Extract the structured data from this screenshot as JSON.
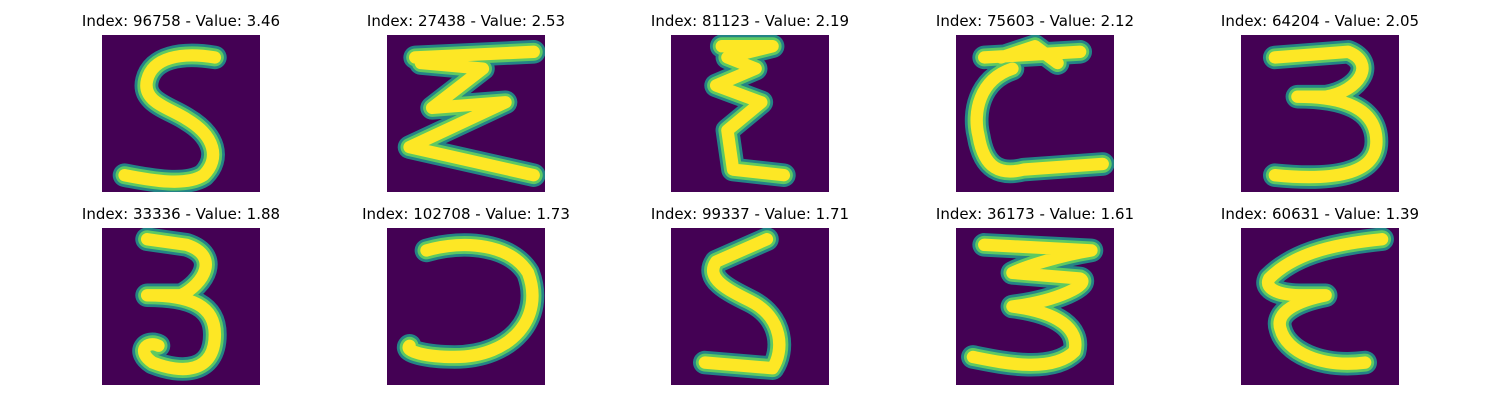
{
  "colors": {
    "background": "#440154",
    "mid_dark": "#21918c",
    "mid_light": "#5ec962",
    "foreground": "#fde725"
  },
  "panels": [
    {
      "title": "Index: 96758 - Value: 3.46",
      "glyph": "5"
    },
    {
      "title": "Index: 27438 - Value: 2.53",
      "glyph": "Σ"
    },
    {
      "title": "Index: 81123 - Value: 2.19",
      "glyph": "ξ"
    },
    {
      "title": "Index: 75603 - Value: 2.12",
      "glyph": "C"
    },
    {
      "title": "Index: 64204 - Value: 2.05",
      "glyph": "3"
    },
    {
      "title": "Index: 33336 - Value: 1.88",
      "glyph": "3"
    },
    {
      "title": "Index: 102708 - Value: 1.73",
      "glyph": "Ↄ"
    },
    {
      "title": "Index: 99337 - Value: 1.71",
      "glyph": "ʃ"
    },
    {
      "title": "Index: 36173 - Value: 1.61",
      "glyph": "Ʒ"
    },
    {
      "title": "Index: 60631 - Value: 1.39",
      "glyph": "ε"
    }
  ]
}
